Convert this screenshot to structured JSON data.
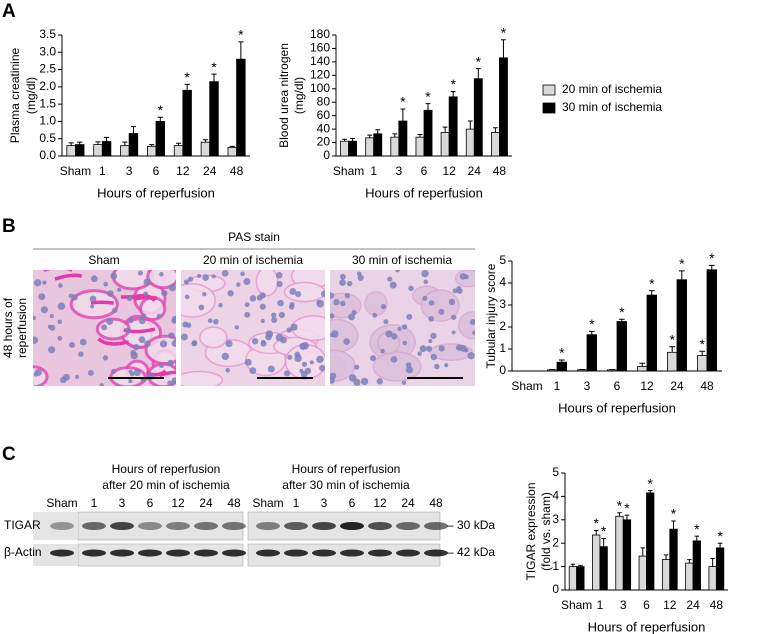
{
  "panel_labels": [
    "A",
    "B",
    "C"
  ],
  "histology": {
    "title": "PAS stain",
    "columns": [
      "Sham",
      "20 min of ischemia",
      "30 min of ischemia"
    ],
    "row_label": [
      "48 hours of",
      "reperfusion"
    ]
  },
  "blot": {
    "groups": [
      {
        "title": [
          "Hours of reperfusion",
          "after 20 min of ischemia"
        ],
        "lanes": [
          "Sham",
          "1",
          "3",
          "6",
          "12",
          "24",
          "48"
        ]
      },
      {
        "title": [
          "Hours of reperfusion",
          "after 30 min of ischemia"
        ],
        "lanes": [
          "Sham",
          "1",
          "3",
          "6",
          "12",
          "24",
          "48"
        ]
      }
    ],
    "rows": [
      "TIGAR",
      "β-Actin"
    ],
    "sizes": [
      "– 30 kDa",
      "– 42 kDa"
    ]
  },
  "chart_data": [
    {
      "type": "bar",
      "ylabel": [
        "Plasma creatinine",
        "(mg/dl)"
      ],
      "xlabel": "Hours of reperfusion",
      "categories": [
        "Sham",
        "1",
        "3",
        "6",
        "12",
        "24",
        "48"
      ],
      "series": [
        {
          "color": "#d9d9d9",
          "values": [
            0.3,
            0.33,
            0.3,
            0.28,
            0.3,
            0.4,
            0.25
          ],
          "errors": [
            0.08,
            0.08,
            0.1,
            0.05,
            0.07,
            0.07,
            0.03
          ],
          "labels": [
            null,
            null,
            null,
            null,
            null,
            null,
            null
          ]
        },
        {
          "color": "#000000",
          "values": [
            0.33,
            0.42,
            0.65,
            1.0,
            1.9,
            2.15,
            2.8
          ],
          "errors": [
            0.07,
            0.12,
            0.2,
            0.12,
            0.17,
            0.22,
            0.5
          ],
          "labels": [
            null,
            null,
            null,
            "*",
            "*",
            "*",
            "*"
          ]
        }
      ],
      "ylim": [
        0,
        3.5
      ],
      "yticks": [
        {
          "value": 0,
          "label": "0.0"
        },
        0.5,
        {
          "value": 1,
          "label": "1.0"
        },
        1.5,
        {
          "value": 2,
          "label": "2.0"
        },
        2.5,
        {
          "value": 3,
          "label": "3.0"
        },
        3.5
      ]
    },
    {
      "type": "bar",
      "ylabel": [
        "Blood urea nitrogen",
        "(mg/dl)"
      ],
      "xlabel": "Hours of reperfusion",
      "categories": [
        "Sham",
        "1",
        "3",
        "6",
        "12",
        "24",
        "48"
      ],
      "series": [
        {
          "name": "20 min of ischemia",
          "color": "#d9d9d9",
          "values": [
            22,
            27,
            28,
            28,
            35,
            40,
            35
          ],
          "errors": [
            3,
            4,
            5,
            4,
            8,
            12,
            7
          ],
          "labels": [
            null,
            null,
            null,
            null,
            null,
            null,
            null
          ]
        },
        {
          "name": "30 min of ischemia",
          "color": "#000000",
          "values": [
            22,
            33,
            52,
            68,
            88,
            115,
            146
          ],
          "errors": [
            4,
            6,
            18,
            10,
            8,
            15,
            27
          ],
          "labels": [
            null,
            null,
            "*",
            "*",
            "*",
            "*",
            "*"
          ]
        }
      ],
      "ylim": [
        0,
        180
      ],
      "yticks": [
        0,
        20,
        40,
        60,
        80,
        100,
        120,
        140,
        160,
        180
      ]
    },
    {
      "type": "bar",
      "ylabel": "Tubular injury score",
      "xlabel": "Hours of reperfusion",
      "categories": [
        "Sham",
        "1",
        "3",
        "6",
        "12",
        "24",
        "48"
      ],
      "series": [
        {
          "color": "#d9d9d9",
          "values": [
            0,
            0.05,
            0.05,
            0.05,
            0.2,
            0.85,
            0.7
          ],
          "errors": [
            0,
            0.02,
            0.02,
            0.02,
            0.15,
            0.25,
            0.2
          ],
          "labels": [
            null,
            null,
            null,
            null,
            null,
            "*",
            "*"
          ]
        },
        {
          "color": "#000000",
          "values": [
            0,
            0.4,
            1.65,
            2.25,
            3.45,
            4.15,
            4.6
          ],
          "errors": [
            0,
            0.1,
            0.15,
            0.1,
            0.2,
            0.4,
            0.2
          ],
          "labels": [
            null,
            "*",
            "*",
            "*",
            "*",
            "*",
            "*"
          ]
        }
      ],
      "ylim": [
        0,
        5
      ],
      "yticks": [
        0,
        1,
        2,
        3,
        4,
        5
      ]
    },
    {
      "type": "bar",
      "ylabel": [
        "TIGAR expression",
        "(fold vs. sham)"
      ],
      "xlabel": "Hours of reperfusion",
      "categories": [
        "Sham",
        "1",
        "3",
        "6",
        "12",
        "24",
        "48"
      ],
      "series": [
        {
          "color": "#d9d9d9",
          "values": [
            1.0,
            2.35,
            3.15,
            1.45,
            1.3,
            1.15,
            1.0
          ],
          "errors": [
            0.1,
            0.2,
            0.15,
            0.35,
            0.2,
            0.15,
            0.35
          ],
          "labels": [
            null,
            "*",
            "*",
            null,
            null,
            null,
            null
          ]
        },
        {
          "color": "#000000",
          "values": [
            1.0,
            1.85,
            3.0,
            4.15,
            2.6,
            2.1,
            1.8
          ],
          "errors": [
            0.05,
            0.35,
            0.2,
            0.1,
            0.35,
            0.2,
            0.2
          ],
          "labels": [
            null,
            "*",
            "*",
            "*",
            "*",
            "*",
            "*"
          ]
        }
      ],
      "ylim": [
        0,
        5
      ],
      "yticks": [
        0,
        1,
        2,
        3,
        4,
        5
      ]
    }
  ]
}
